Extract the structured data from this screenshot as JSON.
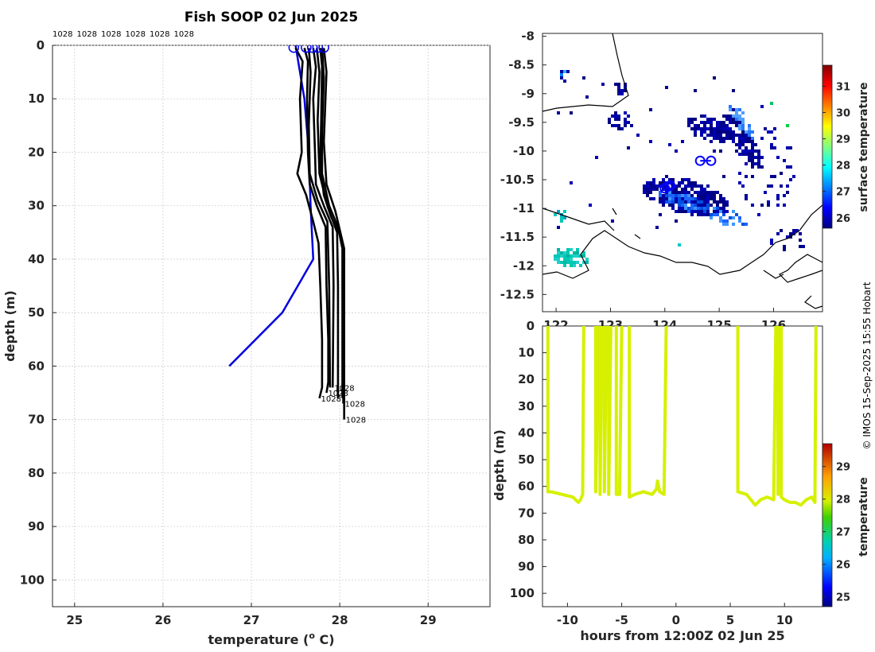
{
  "copyright": "© IMOS 15-Sep-2025 15:55 Hobart",
  "chart_data": [
    {
      "id": "profiles",
      "type": "line",
      "title": "Fish SOOP 02 Jun 2025",
      "xlabel": "temperature (",
      "xlabel_sup": "o",
      "xlabel_end": " C)",
      "ylabel": "depth (m)",
      "xlim": [
        24.75,
        29.7
      ],
      "ylim": [
        105,
        0
      ],
      "xticks": [
        25,
        26,
        27,
        28,
        29
      ],
      "yticks": [
        0,
        10,
        20,
        30,
        40,
        50,
        60,
        70,
        80,
        90,
        100
      ],
      "grid": true,
      "top_labels": [
        "1028",
        "1028",
        "1028",
        "1028",
        "1028",
        "1028"
      ],
      "reference_profile": {
        "color": "#0000dd",
        "points": [
          [
            27.5,
            0
          ],
          [
            27.6,
            10
          ],
          [
            27.65,
            20
          ],
          [
            27.67,
            30
          ],
          [
            27.7,
            40
          ],
          [
            27.35,
            50
          ],
          [
            26.75,
            60
          ]
        ]
      },
      "profiles": [
        {
          "label": "1028",
          "points": [
            [
              27.5,
              0.5
            ],
            [
              27.58,
              3
            ],
            [
              27.55,
              10
            ],
            [
              27.57,
              20
            ],
            [
              27.52,
              24
            ],
            [
              27.62,
              28
            ],
            [
              27.7,
              33
            ],
            [
              27.76,
              37
            ],
            [
              27.78,
              45
            ],
            [
              27.8,
              55
            ],
            [
              27.8,
              64
            ],
            [
              27.77,
              66
            ]
          ]
        },
        {
          "label": "1028",
          "points": [
            [
              27.6,
              0.5
            ],
            [
              27.64,
              3
            ],
            [
              27.63,
              10
            ],
            [
              27.64,
              20
            ],
            [
              27.66,
              26
            ],
            [
              27.74,
              30
            ],
            [
              27.84,
              34
            ],
            [
              27.85,
              45
            ],
            [
              27.87,
              55
            ],
            [
              27.87,
              63
            ],
            [
              27.85,
              65
            ]
          ]
        },
        {
          "label": "1028",
          "points": [
            [
              27.7,
              0.5
            ],
            [
              27.73,
              4
            ],
            [
              27.7,
              10
            ],
            [
              27.72,
              20
            ],
            [
              27.73,
              26
            ],
            [
              27.82,
              30
            ],
            [
              27.92,
              34
            ],
            [
              27.93,
              45
            ],
            [
              27.92,
              64
            ]
          ]
        },
        {
          "label": "1028",
          "points": [
            [
              27.78,
              0.5
            ],
            [
              27.8,
              4
            ],
            [
              27.79,
              14
            ],
            [
              27.78,
              22
            ],
            [
              27.82,
              28
            ],
            [
              27.9,
              32
            ],
            [
              28.02,
              36
            ],
            [
              28.05,
              39
            ],
            [
              28.04,
              50
            ],
            [
              28.04,
              67
            ]
          ]
        },
        {
          "label": "1028",
          "points": [
            [
              27.82,
              0.5
            ],
            [
              27.85,
              5
            ],
            [
              27.82,
              18
            ],
            [
              27.85,
              26
            ],
            [
              27.95,
              31
            ],
            [
              28.05,
              38
            ],
            [
              28.05,
              50
            ],
            [
              28.05,
              70
            ]
          ]
        },
        {
          "label": "",
          "points": [
            [
              27.65,
              0.5
            ],
            [
              27.67,
              5
            ],
            [
              27.65,
              15
            ],
            [
              27.66,
              24
            ],
            [
              27.75,
              29
            ],
            [
              27.86,
              33
            ],
            [
              27.88,
              45
            ],
            [
              27.89,
              64
            ]
          ]
        },
        {
          "label": "",
          "points": [
            [
              27.74,
              0.5
            ],
            [
              27.77,
              5
            ],
            [
              27.75,
              14
            ],
            [
              27.77,
              24
            ],
            [
              27.86,
              30
            ],
            [
              27.97,
              35
            ],
            [
              27.98,
              45
            ],
            [
              27.98,
              66
            ]
          ]
        },
        {
          "label": "",
          "points": [
            [
              27.8,
              0.5
            ],
            [
              27.82,
              6
            ],
            [
              27.8,
              16
            ],
            [
              27.8,
              24
            ],
            [
              27.88,
              30
            ],
            [
              27.98,
              34
            ],
            [
              28.03,
              38
            ],
            [
              28.03,
              50
            ],
            [
              28.03,
              66
            ]
          ]
        }
      ],
      "profile_markers_x": [
        27.48,
        27.62,
        27.69,
        27.75,
        27.82
      ]
    },
    {
      "id": "map",
      "type": "heatmap",
      "xlim": [
        121.75,
        126.9
      ],
      "ylim": [
        -12.8,
        -7.95
      ],
      "xticks": [
        122,
        123,
        124,
        125,
        126
      ],
      "xtick_labels": [
        "122",
        "123",
        "124",
        "125",
        "126"
      ],
      "yticks": [
        -8,
        -8.5,
        -9,
        -9.5,
        -10,
        -10.5,
        -11,
        -11.5,
        -12,
        -12.5
      ],
      "colorbar": {
        "label": "surface temperature",
        "min": 25.6,
        "max": 31.8,
        "ticks": [
          26,
          27,
          28,
          29,
          30,
          31
        ]
      },
      "track_markers": [
        [
          124.1,
          -10.6
        ],
        [
          124.0,
          -10.65
        ],
        [
          124.05,
          -10.62
        ],
        [
          124.65,
          -10.17
        ],
        [
          124.85,
          -10.17
        ]
      ]
    },
    {
      "id": "timeseries",
      "type": "scatter",
      "xlabel": "hours from 12:00Z 02 Jun 25",
      "ylabel": "depth (m)",
      "xlim": [
        -12.3,
        13.5
      ],
      "ylim": [
        105,
        0
      ],
      "xticks": [
        -10,
        -5,
        0,
        5,
        10
      ],
      "yticks": [
        0,
        10,
        20,
        30,
        40,
        50,
        60,
        70,
        80,
        90,
        100
      ],
      "color": "#d6f000",
      "colorbar": {
        "label": "temperature",
        "min": 24.7,
        "max": 29.7,
        "ticks": [
          25,
          26,
          27,
          28,
          29
        ]
      },
      "segments": [
        [
          [
            -11.8,
            0
          ],
          [
            -11.8,
            62
          ],
          [
            -11.5,
            62
          ],
          [
            -10.5,
            63
          ],
          [
            -9.5,
            64
          ],
          [
            -9,
            66
          ],
          [
            -8.8,
            65
          ],
          [
            -8.6,
            63
          ],
          [
            -8.5,
            0
          ]
        ],
        [
          [
            -7.4,
            0
          ],
          [
            -7.4,
            62
          ],
          [
            -7.1,
            0
          ]
        ],
        [
          [
            -7.0,
            0
          ],
          [
            -7.0,
            63
          ],
          [
            -6.8,
            0
          ]
        ],
        [
          [
            -6.6,
            0
          ],
          [
            -6.6,
            62
          ],
          [
            -6.4,
            0
          ]
        ],
        [
          [
            -6.2,
            0
          ],
          [
            -6.2,
            63
          ],
          [
            -6.0,
            0
          ]
        ],
        [
          [
            -5.5,
            0
          ],
          [
            -5.5,
            63
          ],
          [
            -5.2,
            63
          ],
          [
            -5.0,
            0
          ]
        ],
        [
          [
            -4.3,
            0
          ],
          [
            -4.3,
            64
          ],
          [
            -3.8,
            63
          ],
          [
            -3.0,
            62
          ],
          [
            -2.2,
            63
          ],
          [
            -1.8,
            61
          ],
          [
            -1.7,
            58
          ],
          [
            -1.5,
            62
          ],
          [
            -1.1,
            63
          ],
          [
            -0.9,
            0
          ]
        ],
        [
          [
            5.7,
            0
          ],
          [
            5.7,
            62
          ],
          [
            6.5,
            63
          ],
          [
            7.3,
            67
          ],
          [
            7.8,
            65
          ],
          [
            8.4,
            64
          ],
          [
            9.0,
            65
          ],
          [
            9.2,
            0
          ]
        ],
        [
          [
            9.4,
            0
          ],
          [
            9.4,
            63
          ],
          [
            9.6,
            0
          ]
        ],
        [
          [
            9.7,
            0
          ],
          [
            9.7,
            64
          ],
          [
            10.0,
            65
          ],
          [
            10.5,
            66
          ],
          [
            11.0,
            66
          ],
          [
            11.5,
            67
          ],
          [
            12.0,
            65
          ],
          [
            12.5,
            64
          ],
          [
            12.8,
            66
          ],
          [
            12.9,
            0
          ]
        ]
      ]
    }
  ]
}
